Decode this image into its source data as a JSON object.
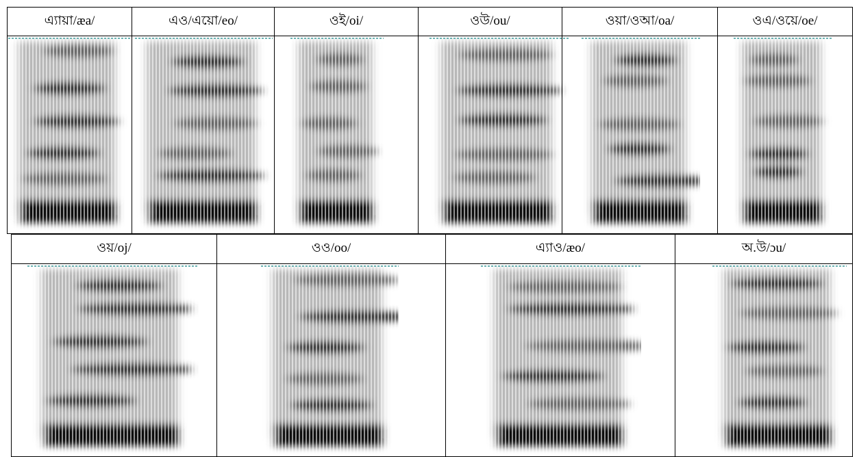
{
  "rows": [
    [
      "এ্যায়া/æa/",
      "এও/এয়ো/eo/",
      "ওই/oi/",
      "ওউ/ou/",
      "ওয়া/ওআ/oa/",
      "ওএ/ওয়ে/oe/"
    ],
    [
      "ওয়/oj/",
      "ওও/oo/",
      "এ্যাও/æo/",
      "অ.উ/ɔu/"
    ]
  ]
}
